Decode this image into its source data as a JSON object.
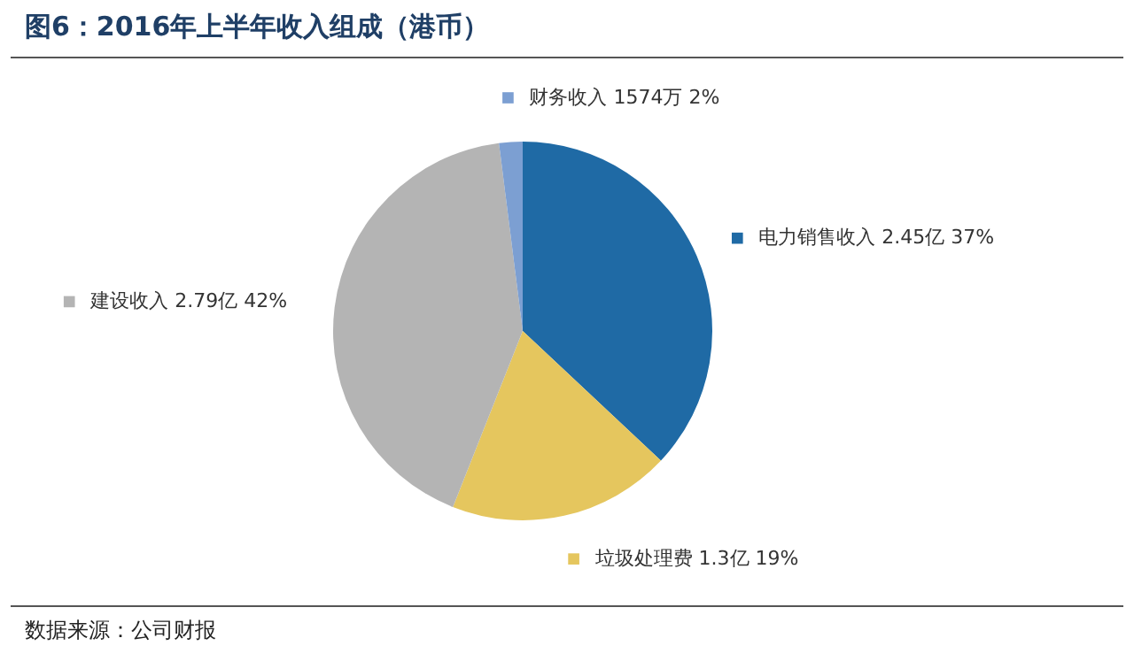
{
  "chart_data": {
    "type": "pie",
    "title": "图6：2016年上半年收入组成（港币）",
    "categories": [
      "电力销售收入 2.45亿",
      "垃圾处理费 1.3亿",
      "建设收入 2.79亿",
      "财务收入 1574万"
    ],
    "values": [
      37,
      19,
      42,
      2
    ],
    "value_labels": [
      "37%",
      "19%",
      "42%",
      "2%"
    ],
    "colors": [
      "#1f6aa5",
      "#e5c65e",
      "#b4b4b4",
      "#7c9fd2"
    ],
    "legend": "right",
    "annotations": [
      "数据来源：公司财报"
    ]
  }
}
